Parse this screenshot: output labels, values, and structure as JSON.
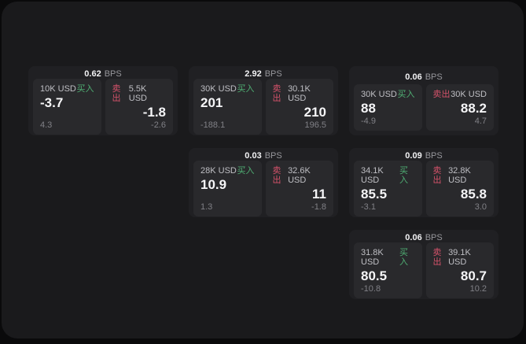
{
  "colors": {
    "page_bg": "#0a0a0b",
    "panel_bg": "#1a1a1c",
    "card_bg": "#202023",
    "tile_bg": "#29292c",
    "text_primary": "#f5f5f7",
    "text_secondary": "#bfbfc4",
    "text_muted": "#808086",
    "buy_green": "#4fae73",
    "sell_red": "#d4526a"
  },
  "labels": {
    "bps_unit": "BPS",
    "buy": "买入",
    "sell": "卖出"
  },
  "cards": [
    {
      "col": 1,
      "row": 1,
      "bps": "0.62",
      "buy": {
        "amount": "10K USD",
        "main": "-3.7",
        "sub": "4.3"
      },
      "sell": {
        "amount": "5.5K USD",
        "main": "-1.8",
        "sub": "-2.6"
      }
    },
    {
      "col": 2,
      "row": 1,
      "bps": "2.92",
      "buy": {
        "amount": "30K USD",
        "main": "201",
        "sub": "-188.1"
      },
      "sell": {
        "amount": "30.1K USD",
        "main": "210",
        "sub": "196.5"
      }
    },
    {
      "col": 3,
      "row": 1,
      "bps": "0.06",
      "buy": {
        "amount": "30K USD",
        "main": "88",
        "sub": "-4.9"
      },
      "sell": {
        "amount": "30K USD",
        "main": "88.2",
        "sub": "4.7"
      }
    },
    {
      "col": 2,
      "row": 2,
      "bps": "0.03",
      "buy": {
        "amount": "28K USD",
        "main": "10.9",
        "sub": "1.3"
      },
      "sell": {
        "amount": "32.6K USD",
        "main": "11",
        "sub": "-1.8"
      }
    },
    {
      "col": 3,
      "row": 2,
      "bps": "0.09",
      "buy": {
        "amount": "34.1K USD",
        "main": "85.5",
        "sub": "-3.1"
      },
      "sell": {
        "amount": "32.8K USD",
        "main": "85.8",
        "sub": "3.0"
      }
    },
    {
      "col": 3,
      "row": 3,
      "bps": "0.06",
      "buy": {
        "amount": "31.8K USD",
        "main": "80.5",
        "sub": "-10.8"
      },
      "sell": {
        "amount": "39.1K USD",
        "main": "80.7",
        "sub": "10.2"
      }
    }
  ]
}
